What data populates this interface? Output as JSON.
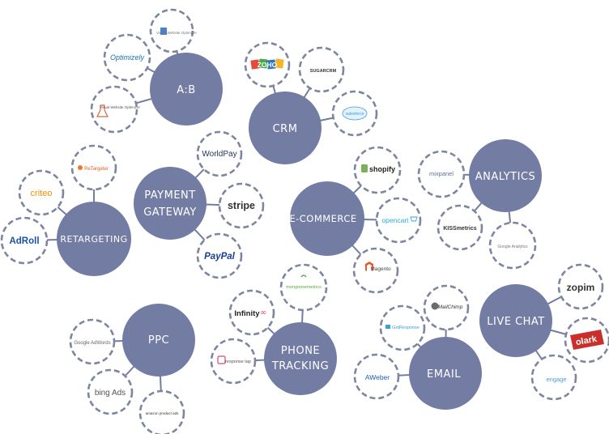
{
  "hubs": {
    "ab": "A:B",
    "crm": "CRM",
    "payment": [
      "PAYMENT",
      "GATEWAY"
    ],
    "ecommerce": "E-COMMERCE",
    "analytics": "ANALYTICS",
    "retargeting": "RETARGETING",
    "ppc": "PPC",
    "phone": [
      "PHONE",
      "TRACKING"
    ],
    "email": "EMAIL",
    "livechat": "LIVE CHAT"
  },
  "logos": {
    "ab_1": "Visual Website Optimizer",
    "ab_2": "Optimizely",
    "ab_3": "Visual Website Optimizer",
    "crm_1": "ZOHO",
    "crm_2": "SUGARCRM",
    "crm_3": "salesforce",
    "payment_1": "WorldPay",
    "payment_2": "stripe",
    "payment_3": "PayPal",
    "ecommerce_1": "shopify",
    "ecommerce_2": "opencart",
    "ecommerce_3": "Magento",
    "analytics_1": "mixpanel",
    "analytics_2": "KISSmetrics",
    "analytics_3": "Google Analytics",
    "retargeting_1": "ReTargeter",
    "retargeting_2": "criteo",
    "retargeting_3": "AdRoll",
    "ppc_1": "Google AdWords",
    "ppc_2": "bing Ads",
    "ppc_3": "amazon product ads",
    "phone_1": "mongoosemetrics",
    "phone_2": "Infinity",
    "phone_3": "response tap",
    "email_1": "MailChimp",
    "email_2": "GetResponse",
    "email_3": "AWeber",
    "livechat_1": "zopim",
    "livechat_2": "olark",
    "livechat_3": "engage"
  },
  "colors": {
    "hub": "#737ca3",
    "satellite_border": "#7d859f",
    "edge": "#737ca3"
  }
}
